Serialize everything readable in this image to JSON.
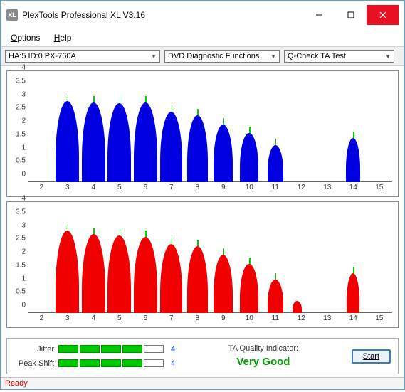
{
  "window": {
    "title": "PlexTools Professional XL V3.16",
    "icon_label": "XL"
  },
  "menu": {
    "options": "Options",
    "help": "Help"
  },
  "toolbar": {
    "device": "HA:5 ID:0   PX-760A",
    "func": "DVD Diagnostic Functions",
    "test": "Q-Check TA Test"
  },
  "chart": {
    "ylim": [
      0,
      4
    ],
    "yticks": [
      0,
      0.5,
      1,
      1.5,
      2,
      2.5,
      3,
      3.5,
      4
    ],
    "xlim": [
      1.5,
      15.5
    ],
    "xticks": [
      2,
      3,
      4,
      5,
      6,
      7,
      8,
      9,
      10,
      11,
      12,
      13,
      14,
      15
    ],
    "grid_color": "#ffffff",
    "line_color": "#00d000",
    "top": {
      "color": "#0000e0",
      "peaks": [
        {
          "c": 3,
          "h": 3.05,
          "w": 0.9
        },
        {
          "c": 4,
          "h": 3.0,
          "w": 0.9
        },
        {
          "c": 5,
          "h": 2.95,
          "w": 0.9
        },
        {
          "c": 6,
          "h": 3.0,
          "w": 0.9
        },
        {
          "c": 7,
          "h": 2.65,
          "w": 0.85
        },
        {
          "c": 8,
          "h": 2.5,
          "w": 0.8
        },
        {
          "c": 9,
          "h": 2.15,
          "w": 0.75
        },
        {
          "c": 10,
          "h": 1.85,
          "w": 0.7
        },
        {
          "c": 11,
          "h": 1.4,
          "w": 0.6
        },
        {
          "c": 14,
          "h": 1.65,
          "w": 0.55
        }
      ]
    },
    "bottom": {
      "color": "#f00000",
      "peaks": [
        {
          "c": 3,
          "h": 3.1,
          "w": 0.9
        },
        {
          "c": 4,
          "h": 2.95,
          "w": 0.9
        },
        {
          "c": 5,
          "h": 2.9,
          "w": 0.9
        },
        {
          "c": 6,
          "h": 2.85,
          "w": 0.9
        },
        {
          "c": 7,
          "h": 2.6,
          "w": 0.85
        },
        {
          "c": 8,
          "h": 2.5,
          "w": 0.8
        },
        {
          "c": 9,
          "h": 2.2,
          "w": 0.75
        },
        {
          "c": 10,
          "h": 1.85,
          "w": 0.7
        },
        {
          "c": 11,
          "h": 1.25,
          "w": 0.6
        },
        {
          "c": 11.85,
          "h": 0.45,
          "w": 0.35
        },
        {
          "c": 14,
          "h": 1.5,
          "w": 0.5
        }
      ]
    },
    "vlines": [
      3,
      4,
      5,
      6,
      7,
      8,
      9,
      10,
      11,
      14
    ]
  },
  "meters": {
    "jitter": {
      "label": "Jitter",
      "segments": 5,
      "filled": 4,
      "value": "4"
    },
    "peakshift": {
      "label": "Peak Shift",
      "segments": 5,
      "filled": 4,
      "value": "4"
    }
  },
  "quality": {
    "title": "TA Quality Indicator:",
    "value": "Very Good",
    "color": "#00a000"
  },
  "buttons": {
    "start": "Start"
  },
  "status": {
    "text": "Ready"
  }
}
